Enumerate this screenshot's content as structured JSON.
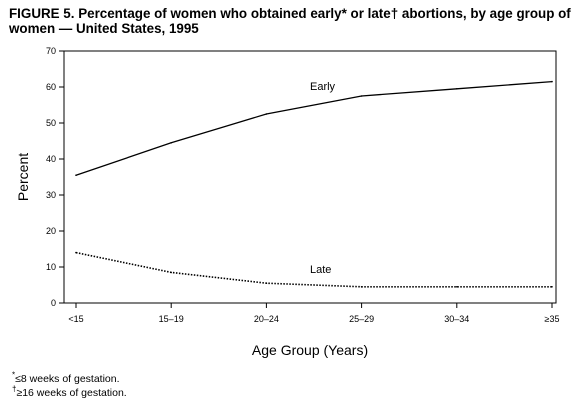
{
  "figure": {
    "title": "FIGURE 5. Percentage of women who obtained early* or late† abortions, by age group of women — United States, 1995"
  },
  "footnotes": [
    {
      "mark": "*",
      "text": "≤8 weeks of gestation."
    },
    {
      "mark": "†",
      "text": "≥16 weeks of gestation."
    }
  ],
  "chart_data": {
    "type": "line",
    "title": "FIGURE 5. Percentage of women who obtained early* or late† abortions, by age group of women — United States, 1995",
    "xlabel": "Age Group (Years)",
    "ylabel": "Percent",
    "categories": [
      "<15",
      "15–19",
      "20–24",
      "25–29",
      "30–34",
      "≥35"
    ],
    "ylim": [
      0,
      70
    ],
    "yticks": [
      0,
      10,
      20,
      30,
      40,
      50,
      60,
      70
    ],
    "grid": false,
    "series": [
      {
        "name": "Early",
        "values": [
          35.5,
          44.5,
          52.5,
          57.5,
          59.5,
          61.5
        ],
        "style": "solid",
        "color": "#000000"
      },
      {
        "name": "Late",
        "values": [
          14.0,
          8.5,
          5.5,
          4.5,
          4.5,
          4.5
        ],
        "style": "dotted",
        "color": "#000000"
      }
    ]
  }
}
